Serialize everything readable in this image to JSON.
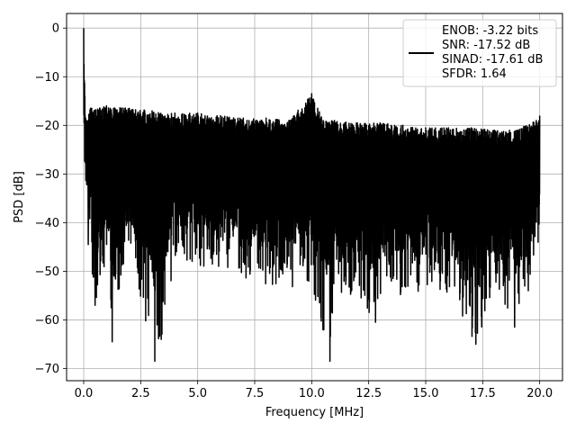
{
  "chart_data": {
    "type": "line",
    "xlabel": "Frequency [MHz]",
    "ylabel": "PSD [dB]",
    "xlim": [
      -0.75,
      21.0
    ],
    "ylim": [
      -72.5,
      3.0
    ],
    "xticks": [
      0.0,
      2.5,
      5.0,
      7.5,
      10.0,
      12.5,
      15.0,
      17.5,
      20.0
    ],
    "xtick_labels": [
      "0.0",
      "2.5",
      "5.0",
      "7.5",
      "10.0",
      "12.5",
      "15.0",
      "17.5",
      "20.0"
    ],
    "yticks": [
      0,
      -10,
      -20,
      -30,
      -40,
      -50,
      -60,
      -70
    ],
    "ytick_labels": [
      "0",
      "−10",
      "−20",
      "−30",
      "−40",
      "−50",
      "−60",
      "−70"
    ],
    "grid": true,
    "legend": {
      "placement": "upper right"
    },
    "series": [
      {
        "name": "ENOB: -3.22 bits\nSNR: -17.52 dB\nSINAD: -17.61 dB\nSFDR: 1.64",
        "color": "#000000",
        "x_range": [
          0.0,
          20.0
        ],
        "upper_envelope": [
          [
            0.0,
            0
          ],
          [
            0.05,
            -14
          ],
          [
            0.1,
            -19
          ],
          [
            0.3,
            -16.5
          ],
          [
            1.0,
            -16
          ],
          [
            2.0,
            -16.5
          ],
          [
            3.0,
            -17
          ],
          [
            4.0,
            -17.5
          ],
          [
            5.0,
            -17.5
          ],
          [
            6.0,
            -18
          ],
          [
            7.0,
            -18.5
          ],
          [
            8.0,
            -18.5
          ],
          [
            9.0,
            -19
          ],
          [
            10.0,
            -13.5
          ],
          [
            10.5,
            -19
          ],
          [
            11.0,
            -19
          ],
          [
            12.0,
            -19.5
          ],
          [
            13.0,
            -19.5
          ],
          [
            14.0,
            -20
          ],
          [
            15.0,
            -20.5
          ],
          [
            16.0,
            -20.5
          ],
          [
            17.0,
            -20.5
          ],
          [
            18.0,
            -21
          ],
          [
            19.0,
            -21
          ],
          [
            20.0,
            -18
          ]
        ],
        "lower_envelope": [
          [
            0.0,
            -24
          ],
          [
            0.1,
            -32
          ],
          [
            0.2,
            -44.5
          ],
          [
            0.5,
            -57
          ],
          [
            1.0,
            -47
          ],
          [
            1.25,
            -64.5
          ],
          [
            2.0,
            -47
          ],
          [
            3.12,
            -68.5
          ],
          [
            3.4,
            -64
          ],
          [
            4.0,
            -48
          ],
          [
            5.0,
            -49
          ],
          [
            6.0,
            -51
          ],
          [
            7.0,
            -52
          ],
          [
            8.0,
            -53
          ],
          [
            9.0,
            -54
          ],
          [
            10.0,
            -53
          ],
          [
            10.8,
            -68.5
          ],
          [
            11.0,
            -55
          ],
          [
            12.0,
            -55
          ],
          [
            12.8,
            -60.5
          ],
          [
            13.0,
            -55
          ],
          [
            14.0,
            -55
          ],
          [
            15.0,
            -55
          ],
          [
            16.0,
            -55
          ],
          [
            17.2,
            -65
          ],
          [
            18.0,
            -55
          ],
          [
            18.9,
            -61.5
          ],
          [
            19.5,
            -54
          ],
          [
            20.0,
            -44
          ]
        ]
      }
    ]
  }
}
